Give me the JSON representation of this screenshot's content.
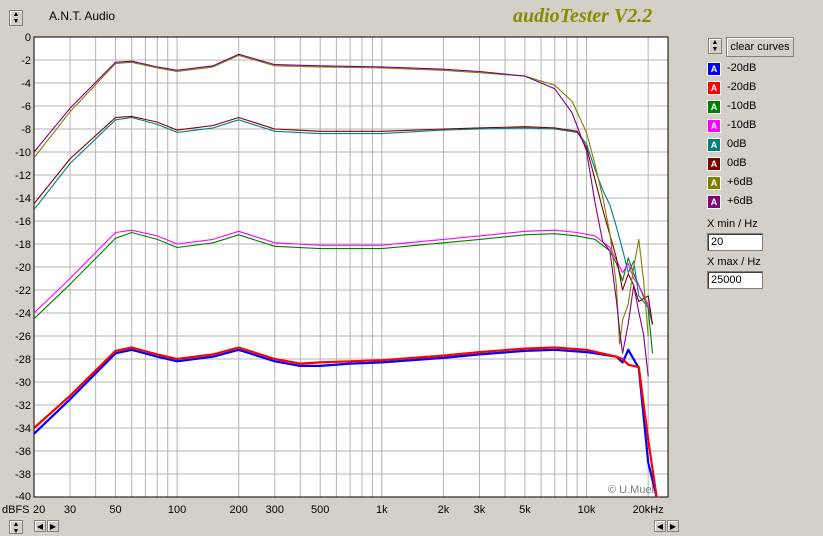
{
  "app": {
    "name": "A.N.T. Audio",
    "brand": "audioTester V2.2"
  },
  "controls": {
    "clear_label": "clear curves",
    "xmin_label": "X min / Hz",
    "xmin_value": "20",
    "xmax_label": "X max / Hz",
    "xmax_value": "25000"
  },
  "legend": [
    {
      "label": "-20dB",
      "color": "#0000ff"
    },
    {
      "label": "-20dB",
      "color": "#ff0000"
    },
    {
      "label": "-10dB",
      "color": "#008000"
    },
    {
      "label": "-10dB",
      "color": "#ff00ff"
    },
    {
      "label": "0dB",
      "color": "#008080"
    },
    {
      "label": "0dB",
      "color": "#800000"
    },
    {
      "label": "+6dB",
      "color": "#808000"
    },
    {
      "label": "+6dB",
      "color": "#800080"
    }
  ],
  "chart_data": {
    "type": "line",
    "xscale": "log",
    "xlim": [
      20,
      25000
    ],
    "ylim": [
      -40,
      0
    ],
    "ylabel": "dBFS",
    "grid": true,
    "x_tick_labels": [
      "20",
      "30",
      "50",
      "100",
      "200",
      "300",
      "500",
      "1k",
      "2k",
      "3k",
      "5k",
      "10k",
      "20kHz"
    ],
    "x_tick_values": [
      20,
      30,
      50,
      100,
      200,
      300,
      500,
      1000,
      2000,
      3000,
      5000,
      10000,
      20000
    ],
    "y_ticks": [
      0,
      -2,
      -4,
      -6,
      -8,
      -10,
      -12,
      -14,
      -16,
      -18,
      -20,
      -22,
      -24,
      -26,
      -28,
      -30,
      -32,
      -34,
      -36,
      -38,
      -40
    ],
    "watermark": "© U.Muel",
    "series": [
      {
        "name": "-20dB",
        "color": "#0000ff",
        "x": [
          20,
          30,
          50,
          60,
          80,
          100,
          150,
          200,
          300,
          400,
          500,
          700,
          1000,
          2000,
          3000,
          5000,
          7000,
          10000,
          14000,
          15000,
          16000,
          18000,
          20000,
          22000
        ],
        "y": [
          -34.5,
          -31.5,
          -27.5,
          -27.2,
          -27.8,
          -28.2,
          -27.8,
          -27.2,
          -28.2,
          -28.6,
          -28.6,
          -28.4,
          -28.3,
          -27.9,
          -27.6,
          -27.3,
          -27.2,
          -27.4,
          -27.8,
          -28.3,
          -27.2,
          -28.8,
          -37,
          -40
        ]
      },
      {
        "name": "-20dB",
        "color": "#ff0000",
        "x": [
          20,
          30,
          50,
          60,
          80,
          100,
          150,
          200,
          300,
          400,
          500,
          700,
          1000,
          2000,
          3000,
          5000,
          7000,
          10000,
          14000,
          15000,
          16000,
          18000,
          20000,
          22000
        ],
        "y": [
          -34.0,
          -31.2,
          -27.3,
          -27.0,
          -27.6,
          -28.0,
          -27.6,
          -27.0,
          -28.0,
          -28.4,
          -28.3,
          -28.2,
          -28.1,
          -27.7,
          -27.4,
          -27.1,
          -27.0,
          -27.2,
          -27.8,
          -28.0,
          -28.5,
          -28.7,
          -35,
          -40
        ]
      },
      {
        "name": "-10dB",
        "color": "#008000",
        "x": [
          20,
          30,
          50,
          60,
          80,
          100,
          150,
          200,
          300,
          500,
          1000,
          2000,
          3000,
          5000,
          7000,
          9000,
          11000,
          13000,
          14000,
          15000,
          16000,
          17000,
          18000,
          20000,
          21000
        ],
        "y": [
          -24.5,
          -21.5,
          -17.5,
          -17.0,
          -17.6,
          -18.3,
          -17.9,
          -17.2,
          -18.2,
          -18.4,
          -18.4,
          -17.9,
          -17.6,
          -17.2,
          -17.1,
          -17.3,
          -17.6,
          -18.6,
          -19.7,
          -21.2,
          -19.2,
          -20.6,
          -21.6,
          -23.6,
          -27.5
        ]
      },
      {
        "name": "-10dB",
        "color": "#ff00ff",
        "x": [
          20,
          30,
          50,
          60,
          80,
          100,
          150,
          200,
          300,
          500,
          1000,
          2000,
          3000,
          5000,
          7000,
          9000,
          11000,
          13000,
          14000,
          15000,
          16000,
          17000,
          18000,
          20000,
          21000
        ],
        "y": [
          -24.0,
          -21.0,
          -17.0,
          -16.8,
          -17.3,
          -18.0,
          -17.6,
          -16.9,
          -17.9,
          -18.1,
          -18.1,
          -17.6,
          -17.3,
          -16.9,
          -16.8,
          -17.0,
          -17.3,
          -18.3,
          -19.4,
          -20.5,
          -19.7,
          -21.0,
          -21.6,
          -23.3,
          -25
        ]
      },
      {
        "name": "0dB",
        "color": "#008080",
        "x": [
          20,
          30,
          50,
          60,
          80,
          100,
          150,
          200,
          300,
          500,
          1000,
          2000,
          3000,
          5000,
          7000,
          9000,
          10000,
          11000,
          12000,
          13000,
          14000,
          15000,
          16000,
          17000,
          18000,
          20000,
          21000
        ],
        "y": [
          -15,
          -11,
          -7.2,
          -7.0,
          -7.6,
          -8.3,
          -7.9,
          -7.2,
          -8.2,
          -8.4,
          -8.4,
          -8.1,
          -8.0,
          -7.9,
          -8.0,
          -8.3,
          -9.3,
          -11.5,
          -13.3,
          -14.6,
          -16.5,
          -18.5,
          -20.5,
          -19.5,
          -22.5,
          -23.5,
          -25
        ]
      },
      {
        "name": "0dB",
        "color": "#800000",
        "x": [
          20,
          30,
          50,
          60,
          80,
          100,
          150,
          200,
          300,
          500,
          1000,
          2000,
          3000,
          5000,
          7000,
          9000,
          10000,
          11000,
          12000,
          13000,
          14000,
          15000,
          16000,
          17000,
          18000,
          20000,
          21000
        ],
        "y": [
          -14.5,
          -10.6,
          -7.0,
          -6.9,
          -7.4,
          -8.1,
          -7.7,
          -7.0,
          -8.0,
          -8.2,
          -8.2,
          -8.0,
          -7.9,
          -7.8,
          -7.9,
          -8.2,
          -9.6,
          -12.4,
          -15,
          -17.2,
          -19.2,
          -22,
          -20.6,
          -21.6,
          -23,
          -22.5,
          -25
        ]
      },
      {
        "name": "+6dB",
        "color": "#808000",
        "x": [
          20,
          30,
          50,
          60,
          80,
          100,
          150,
          200,
          300,
          500,
          1000,
          2000,
          3000,
          5000,
          7000,
          8500,
          10000,
          11000,
          12000,
          13000,
          14000,
          14500,
          15000,
          16000,
          17000,
          18000,
          19000,
          20000
        ],
        "y": [
          -10.5,
          -6.5,
          -2.3,
          -2.2,
          -2.7,
          -3.0,
          -2.6,
          -1.6,
          -2.5,
          -2.6,
          -2.7,
          -2.9,
          -3.1,
          -3.4,
          -4.2,
          -5.6,
          -8.3,
          -11.1,
          -13.9,
          -17.1,
          -21.6,
          -26.7,
          -24.6,
          -23.2,
          -20.0,
          -17.6,
          -21.2,
          -26.0
        ]
      },
      {
        "name": "+6dB",
        "color": "#800080",
        "x": [
          20,
          30,
          50,
          60,
          80,
          100,
          150,
          200,
          300,
          500,
          1000,
          2000,
          3000,
          5000,
          7000,
          8500,
          10000,
          11000,
          12000,
          13000,
          14000,
          14500,
          15000,
          16000,
          17000,
          18000,
          19000,
          20000
        ],
        "y": [
          -10.0,
          -6.2,
          -2.2,
          -2.1,
          -2.6,
          -2.9,
          -2.5,
          -1.5,
          -2.4,
          -2.5,
          -2.6,
          -2.8,
          -3.0,
          -3.4,
          -4.5,
          -6.6,
          -9.9,
          -14.4,
          -17.8,
          -18.6,
          -22.9,
          -25.5,
          -27.5,
          -24.9,
          -21.6,
          -23.9,
          -25.9,
          -29.5
        ]
      }
    ]
  }
}
